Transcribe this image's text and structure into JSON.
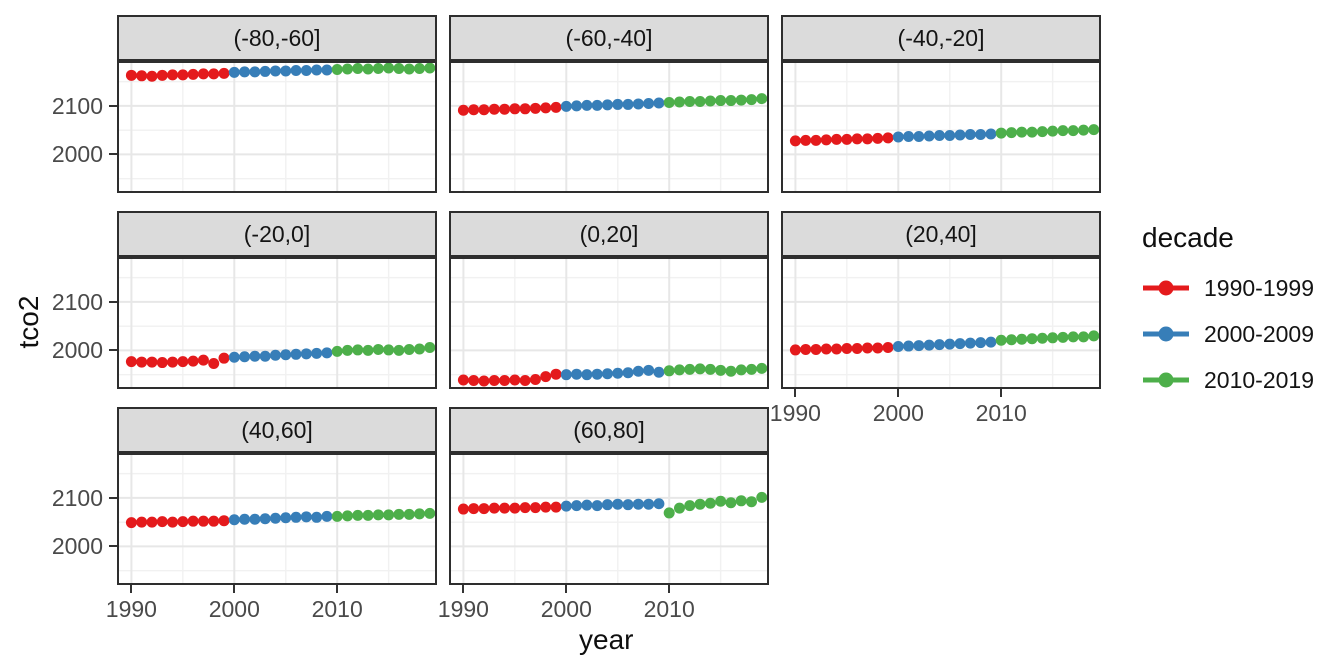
{
  "figure": {
    "xlabel": "year",
    "ylabel": "tco2",
    "background": "#FFFFFF"
  },
  "legend": {
    "title": "decade",
    "position": "right",
    "entries": [
      {
        "label": "1990-1999",
        "color": "#E41A1C"
      },
      {
        "label": "2000-2009",
        "color": "#377EB8"
      },
      {
        "label": "2010-2019",
        "color": "#4DAF4A"
      }
    ]
  },
  "chart_data": {
    "type": "scatter",
    "title": "",
    "xlabel": "year",
    "ylabel": "tco2",
    "grid": true,
    "legend_position": "right",
    "xlim": [
      1988.6,
      2019.7
    ],
    "ylim": [
      1920.5,
      2192.5
    ],
    "x_ticks": [
      {
        "value": 1990,
        "label": "1990"
      },
      {
        "value": 2000,
        "label": "2000"
      },
      {
        "value": 2010,
        "label": "2010"
      }
    ],
    "y_ticks": [
      {
        "value": 2100,
        "label": "2100"
      },
      {
        "value": 2000,
        "label": "2000"
      }
    ],
    "x_minor": [
      1995,
      2005,
      2015
    ],
    "y_minor": [
      1950,
      2050,
      2150
    ],
    "series": [
      {
        "name": "1990-1999",
        "color": "#E41A1C",
        "start": 1990,
        "end": 1999
      },
      {
        "name": "2000-2009",
        "color": "#377EB8",
        "start": 2000,
        "end": 2009
      },
      {
        "name": "2010-2019",
        "color": "#4DAF4A",
        "start": 2010,
        "end": 2019
      }
    ],
    "years": [
      1990,
      1991,
      1992,
      1993,
      1994,
      1995,
      1996,
      1997,
      1998,
      1999,
      2000,
      2001,
      2002,
      2003,
      2004,
      2005,
      2006,
      2007,
      2008,
      2009,
      2010,
      2011,
      2012,
      2013,
      2014,
      2015,
      2016,
      2017,
      2018,
      2019
    ],
    "facets": [
      {
        "label": "(-80,-60]",
        "values": [
          2163,
          2162,
          2161,
          2163,
          2164,
          2164,
          2165,
          2166,
          2166,
          2167,
          2169,
          2170,
          2170,
          2171,
          2172,
          2172,
          2173,
          2173,
          2174,
          2174,
          2175,
          2176,
          2177,
          2176,
          2177,
          2178,
          2177,
          2176,
          2177,
          2178
        ]
      },
      {
        "label": "(-60,-40]",
        "values": [
          2091,
          2092,
          2092,
          2093,
          2093,
          2094,
          2094,
          2095,
          2096,
          2097,
          2099,
          2100,
          2101,
          2101,
          2102,
          2103,
          2103,
          2104,
          2105,
          2106,
          2107,
          2108,
          2109,
          2109,
          2110,
          2111,
          2111,
          2112,
          2113,
          2115
        ]
      },
      {
        "label": "(-40,-20]",
        "values": [
          2028,
          2029,
          2029,
          2030,
          2031,
          2031,
          2032,
          2032,
          2033,
          2034,
          2036,
          2037,
          2037,
          2038,
          2039,
          2039,
          2040,
          2041,
          2041,
          2042,
          2044,
          2045,
          2046,
          2046,
          2047,
          2048,
          2049,
          2049,
          2050,
          2051
        ]
      },
      {
        "label": "(-20,0]",
        "values": [
          1977,
          1976,
          1976,
          1975,
          1976,
          1977,
          1978,
          1980,
          1973,
          1984,
          1986,
          1987,
          1988,
          1988,
          1990,
          1991,
          1992,
          1993,
          1994,
          1995,
          1998,
          2000,
          2001,
          2000,
          2002,
          2001,
          2000,
          2002,
          2003,
          2006
        ]
      },
      {
        "label": "(0,20]",
        "values": [
          1939,
          1938,
          1937,
          1938,
          1938,
          1939,
          1938,
          1940,
          1946,
          1951,
          1950,
          1951,
          1950,
          1951,
          1952,
          1953,
          1954,
          1957,
          1959,
          1955,
          1958,
          1960,
          1961,
          1962,
          1961,
          1959,
          1957,
          1960,
          1961,
          1963
        ]
      },
      {
        "label": "(20,40]",
        "values": [
          2001,
          2002,
          2002,
          2003,
          2003,
          2004,
          2004,
          2005,
          2005,
          2006,
          2008,
          2009,
          2010,
          2011,
          2012,
          2013,
          2014,
          2015,
          2016,
          2017,
          2021,
          2022,
          2023,
          2024,
          2025,
          2026,
          2027,
          2028,
          2028,
          2030
        ]
      },
      {
        "label": "(40,60]",
        "values": [
          2049,
          2050,
          2050,
          2051,
          2050,
          2051,
          2052,
          2052,
          2052,
          2053,
          2055,
          2056,
          2056,
          2057,
          2058,
          2059,
          2060,
          2061,
          2060,
          2062,
          2062,
          2063,
          2064,
          2064,
          2065,
          2065,
          2066,
          2066,
          2067,
          2068
        ]
      },
      {
        "label": "(60,80]",
        "values": [
          2077,
          2078,
          2078,
          2079,
          2079,
          2079,
          2080,
          2080,
          2081,
          2081,
          2083,
          2084,
          2085,
          2084,
          2086,
          2087,
          2086,
          2087,
          2087,
          2088,
          2069,
          2079,
          2084,
          2087,
          2089,
          2093,
          2090,
          2094,
          2092,
          2101
        ]
      }
    ]
  }
}
